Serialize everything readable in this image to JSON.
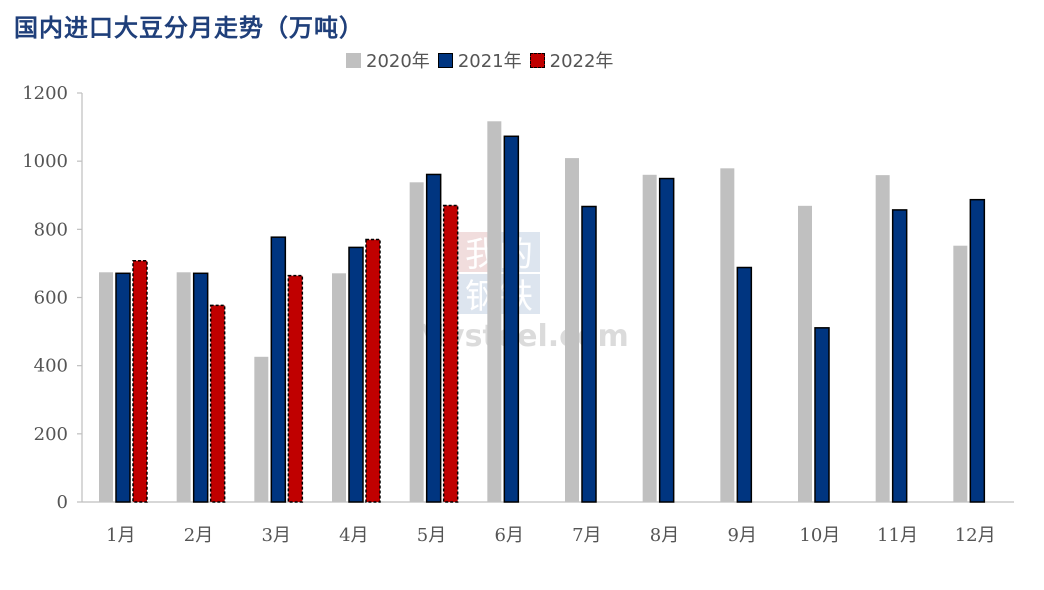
{
  "title": "国内进口大豆分月走势（万吨）",
  "colors": {
    "s2020": "#c0c0c0",
    "s2021": "#003580",
    "s2022": "#c00000",
    "axis": "#bfbfbf",
    "title": "#1f3f7a"
  },
  "watermark": {
    "cn1": "我的",
    "cn2": "钢铁",
    "en": "Mysteel.com"
  },
  "chart_data": {
    "type": "bar",
    "title": "国内进口大豆分月走势（万吨）",
    "xlabel": "",
    "ylabel": "",
    "ylim": [
      0,
      1200
    ],
    "yticks": [
      "0",
      "200",
      "400",
      "600",
      "800",
      "1000",
      "1200"
    ],
    "grid": false,
    "legend_position": "top-center",
    "categories": [
      "1月",
      "2月",
      "3月",
      "4月",
      "5月",
      "6月",
      "7月",
      "8月",
      "9月",
      "10月",
      "11月",
      "12月"
    ],
    "series": [
      {
        "name": "2020年",
        "values": [
          674,
          674,
          426,
          671,
          938,
          1117,
          1009,
          960,
          979,
          869,
          959,
          752
        ]
      },
      {
        "name": "2021年",
        "values": [
          671,
          671,
          777,
          747,
          961,
          1073,
          867,
          949,
          688,
          511,
          857,
          887
        ]
      },
      {
        "name": "2022年",
        "values": [
          708,
          577,
          664,
          770,
          870,
          null,
          null,
          null,
          null,
          null,
          null,
          null
        ]
      }
    ]
  }
}
